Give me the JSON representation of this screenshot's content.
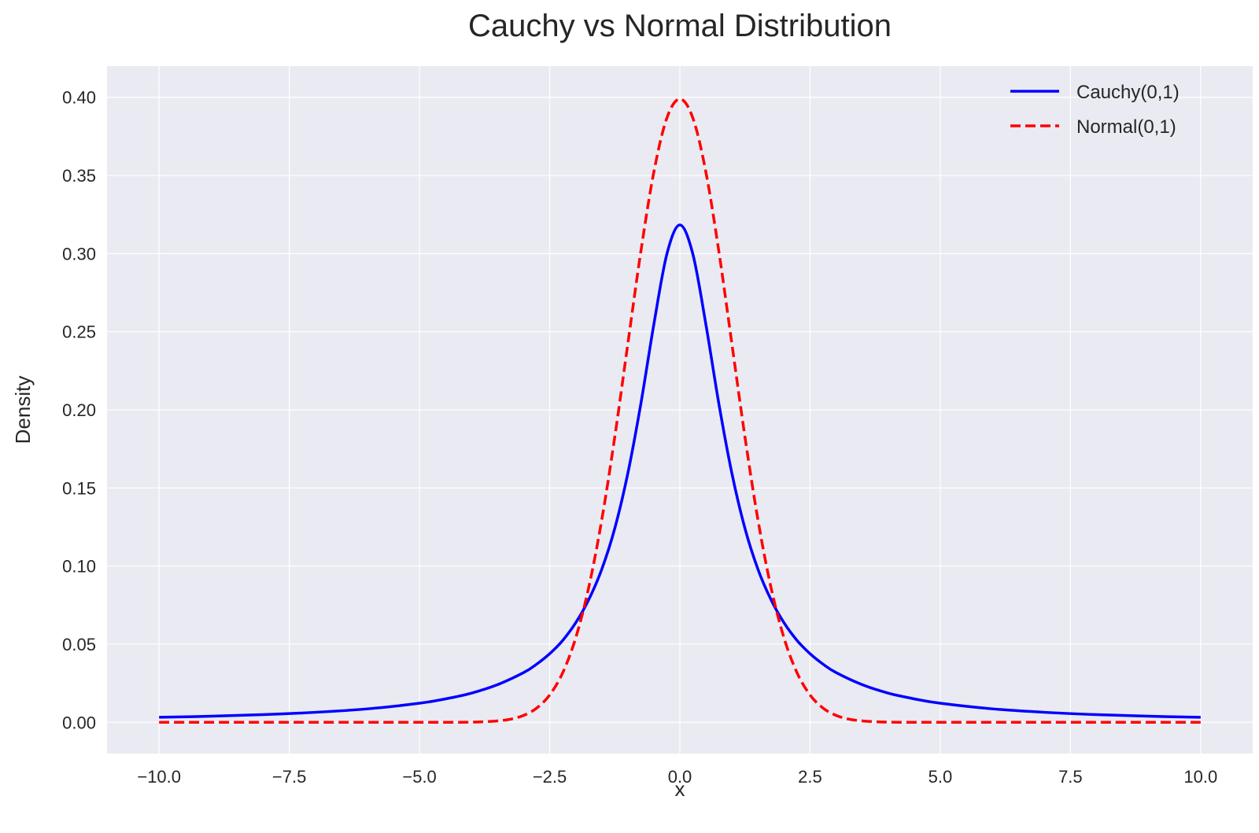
{
  "chart_data": {
    "type": "line",
    "title": "Cauchy vs Normal Distribution",
    "xlabel": "x",
    "ylabel": "Density",
    "xlim": [
      -11.0,
      11.0
    ],
    "ylim": [
      -0.02,
      0.42
    ],
    "x_ticks": [
      -10.0,
      -7.5,
      -5.0,
      -2.5,
      0.0,
      2.5,
      5.0,
      7.5,
      10.0
    ],
    "x_tick_labels": [
      "−10.0",
      "−7.5",
      "−5.0",
      "−2.5",
      "0.0",
      "2.5",
      "5.0",
      "7.5",
      "10.0"
    ],
    "y_ticks": [
      0.0,
      0.05,
      0.1,
      0.15,
      0.2,
      0.25,
      0.3,
      0.35,
      0.4
    ],
    "y_tick_labels": [
      "0.00",
      "0.05",
      "0.10",
      "0.15",
      "0.20",
      "0.25",
      "0.30",
      "0.35",
      "0.40"
    ],
    "grid": true,
    "legend_position": "top-right",
    "background_color": "#eaeaf2",
    "grid_color": "#ffffff",
    "series": [
      {
        "name": "Cauchy(0,1)",
        "color": "#0000ff",
        "style": "solid",
        "x": [
          -10,
          -9,
          -8,
          -7,
          -6,
          -5,
          -4.5,
          -4,
          -3.5,
          -3,
          -2.75,
          -2.5,
          -2.25,
          -2,
          -1.75,
          -1.5,
          -1.25,
          -1,
          -0.75,
          -0.5,
          -0.25,
          0,
          0.25,
          0.5,
          0.75,
          1,
          1.25,
          1.5,
          1.75,
          2,
          2.25,
          2.5,
          2.75,
          3,
          3.5,
          4,
          4.5,
          5,
          6,
          7,
          8,
          9,
          10
        ],
        "y": [
          0.0032,
          0.0039,
          0.0049,
          0.0064,
          0.0086,
          0.0122,
          0.015,
          0.0187,
          0.0241,
          0.0318,
          0.0372,
          0.0439,
          0.0524,
          0.0637,
          0.0785,
          0.0979,
          0.1241,
          0.1592,
          0.2037,
          0.2546,
          0.2996,
          0.3183,
          0.2996,
          0.2546,
          0.2037,
          0.1592,
          0.1241,
          0.0979,
          0.0785,
          0.0637,
          0.0524,
          0.0439,
          0.0372,
          0.0318,
          0.0241,
          0.0187,
          0.015,
          0.0122,
          0.0086,
          0.0064,
          0.0049,
          0.0039,
          0.0032
        ]
      },
      {
        "name": "Normal(0,1)",
        "color": "#ff0000",
        "style": "dashed",
        "x": [
          -10,
          -8,
          -6,
          -5,
          -4.5,
          -4,
          -3.75,
          -3.5,
          -3.25,
          -3,
          -2.75,
          -2.5,
          -2.25,
          -2,
          -1.75,
          -1.5,
          -1.25,
          -1,
          -0.75,
          -0.5,
          -0.25,
          0,
          0.25,
          0.5,
          0.75,
          1,
          1.25,
          1.5,
          1.75,
          2,
          2.25,
          2.5,
          2.75,
          3,
          3.25,
          3.5,
          3.75,
          4,
          4.5,
          5,
          6,
          8,
          10
        ],
        "y": [
          0.0,
          0.0,
          0.0,
          0.0,
          0.0,
          0.0001,
          0.0004,
          0.0009,
          0.002,
          0.0044,
          0.0091,
          0.0175,
          0.0317,
          0.054,
          0.0863,
          0.1295,
          0.1826,
          0.242,
          0.3011,
          0.3521,
          0.3867,
          0.3989,
          0.3867,
          0.3521,
          0.3011,
          0.242,
          0.1826,
          0.1295,
          0.0863,
          0.054,
          0.0317,
          0.0175,
          0.0091,
          0.0044,
          0.002,
          0.0009,
          0.0004,
          0.0001,
          0.0,
          0.0,
          0.0,
          0.0,
          0.0
        ]
      }
    ]
  }
}
